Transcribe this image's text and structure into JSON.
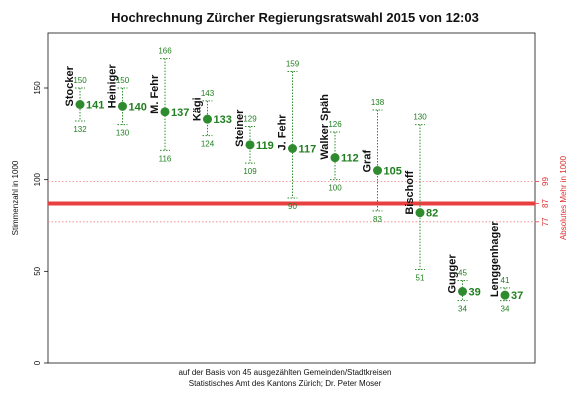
{
  "chart_data": {
    "type": "scatter",
    "title": "Hochrechnung Zürcher Regierungsratswahl 2015 von 12:03",
    "ylabel": "Stimmenzahl in 1000",
    "ylabel_right": "Absolutes Mehr in 1000",
    "caption_line1": "auf der Basis von 45 ausgezählten Gemeinden/Stadtkreisen",
    "caption_line2": "Statistisches Amt des Kantons Zürich; Dr. Peter Moser",
    "ylim": [
      0,
      180
    ],
    "y_ticks": [
      0,
      50,
      100,
      150
    ],
    "right_ticks": [
      77,
      87,
      99
    ],
    "absolute_majority": 87,
    "majority_band": [
      77,
      99
    ],
    "candidates": [
      {
        "name": "Stocker",
        "value": 141,
        "lower": 132,
        "upper": 150
      },
      {
        "name": "Heiniger",
        "value": 140,
        "lower": 130,
        "upper": 150
      },
      {
        "name": "M. Fehr",
        "value": 137,
        "lower": 116,
        "upper": 166
      },
      {
        "name": "Kägi",
        "value": 133,
        "lower": 124,
        "upper": 143
      },
      {
        "name": "Steiner",
        "value": 119,
        "lower": 109,
        "upper": 129
      },
      {
        "name": "J. Fehr",
        "value": 117,
        "lower": 90,
        "upper": 159
      },
      {
        "name": "Walker Späh",
        "value": 112,
        "lower": 100,
        "upper": 126
      },
      {
        "name": "Graf",
        "value": 105,
        "lower": 83,
        "upper": 138
      },
      {
        "name": "Bischoff",
        "value": 82,
        "lower": 51,
        "upper": 130
      },
      {
        "name": "Gugger",
        "value": 39,
        "lower": 34,
        "upper": 45
      },
      {
        "name": "Lenggenhager",
        "value": 37,
        "lower": 34,
        "upper": 41
      }
    ],
    "colors": {
      "point": "#2e8b2e",
      "interval": "#2e8b2e",
      "majority_line": "#e84040",
      "band": "#f08080"
    },
    "grid": false
  }
}
